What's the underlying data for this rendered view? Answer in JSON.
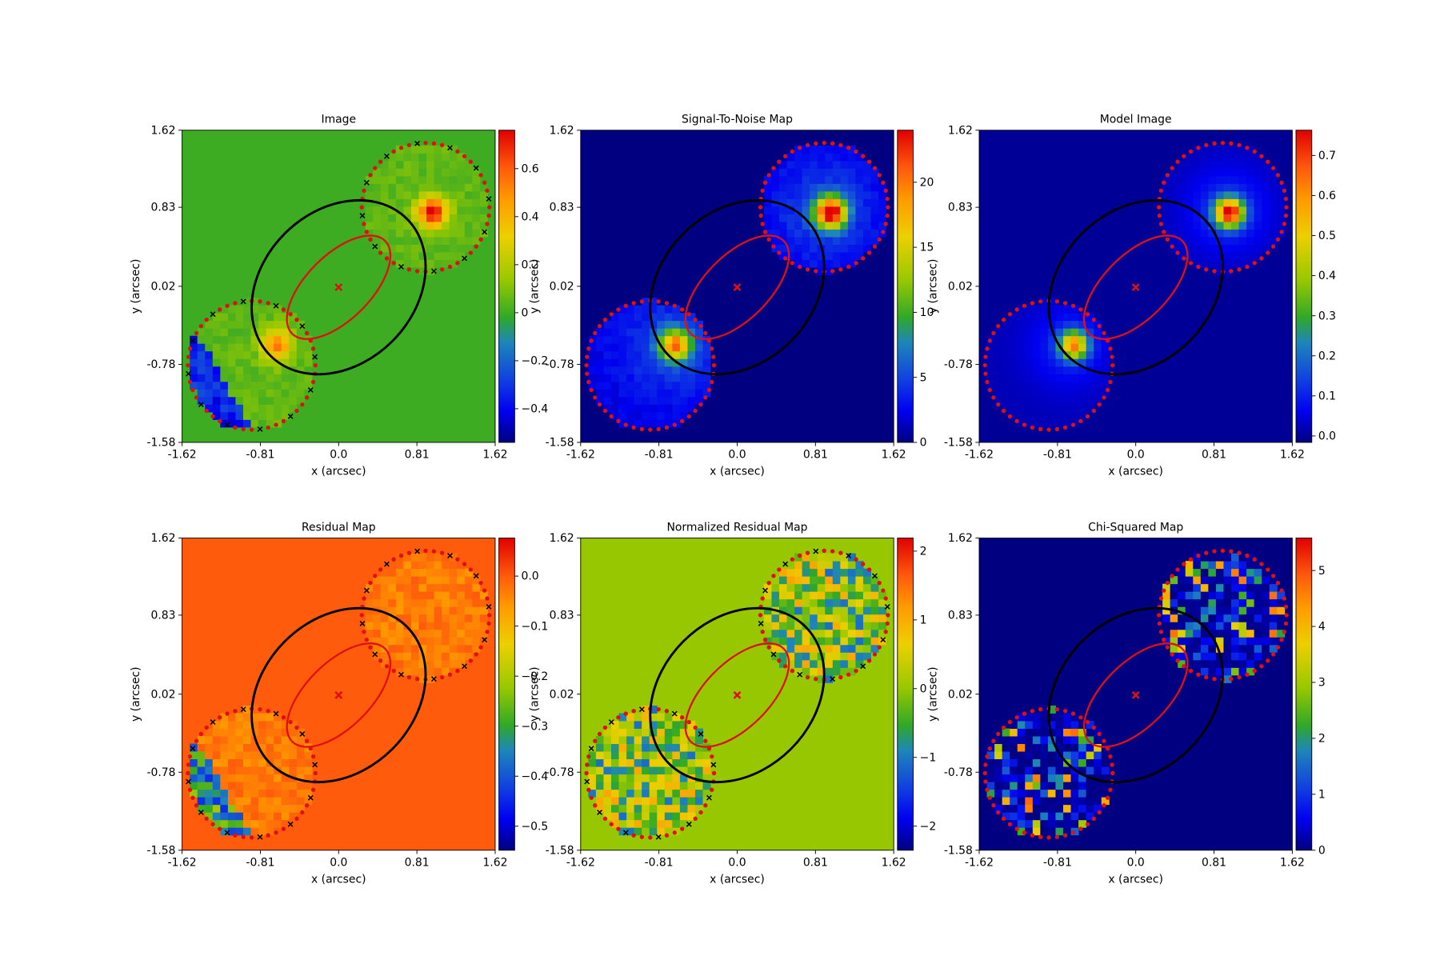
{
  "chart_data": [
    {
      "type": "image",
      "title": "Image",
      "xlabel": "x (arcsec)",
      "ylabel": "y (arcsec)",
      "xlim": [
        -1.62,
        1.62
      ],
      "ylim": [
        -1.58,
        1.62
      ],
      "xticks": [
        -1.62,
        -0.81,
        {
          "value": 0,
          "label": "0.0"
        },
        0.81,
        1.62
      ],
      "yticks": [
        -1.58,
        -0.78,
        0.02,
        0.83,
        1.62
      ],
      "colormap": "jet",
      "clim": [
        -0.54,
        0.76
      ],
      "cticks": [
        {
          "value": -0.4,
          "label": "−0.4"
        },
        {
          "value": -0.2,
          "label": "−0.2"
        },
        0,
        0.2,
        0.4,
        0.6
      ]
    },
    {
      "type": "image",
      "title": "Signal-To-Noise Map",
      "xlabel": "x (arcsec)",
      "ylabel": "y (arcsec)",
      "xlim": [
        -1.62,
        1.62
      ],
      "ylim": [
        -1.58,
        1.62
      ],
      "xticks": [
        -1.62,
        -0.81,
        {
          "value": 0,
          "label": "0.0"
        },
        0.81,
        1.62
      ],
      "yticks": [
        -1.58,
        -0.78,
        0.02,
        0.83,
        1.62
      ],
      "colormap": "jet",
      "clim": [
        0,
        24
      ],
      "cticks": [
        0,
        5,
        10,
        15,
        20
      ]
    },
    {
      "type": "image",
      "title": "Model Image",
      "xlabel": "x (arcsec)",
      "ylabel": "y (arcsec)",
      "xlim": [
        -1.62,
        1.62
      ],
      "ylim": [
        -1.58,
        1.62
      ],
      "xticks": [
        -1.62,
        -0.81,
        {
          "value": 0,
          "label": "0.0"
        },
        0.81,
        1.62
      ],
      "yticks": [
        -1.58,
        -0.78,
        0.02,
        0.83,
        1.62
      ],
      "colormap": "jet",
      "clim": [
        -0.016,
        0.763
      ],
      "cticks": [
        {
          "value": 0,
          "label": "0.0"
        },
        0.1,
        0.2,
        0.3,
        0.4,
        0.5,
        0.6,
        0.7
      ]
    },
    {
      "type": "image",
      "title": "Residual Map",
      "xlabel": "x (arcsec)",
      "ylabel": "y (arcsec)",
      "xlim": [
        -1.62,
        1.62
      ],
      "ylim": [
        -1.58,
        1.62
      ],
      "xticks": [
        -1.62,
        -0.81,
        {
          "value": 0,
          "label": "0.0"
        },
        0.81,
        1.62
      ],
      "yticks": [
        -1.58,
        -0.78,
        0.02,
        0.83,
        1.62
      ],
      "colormap": "jet",
      "clim": [
        -0.548,
        0.076
      ],
      "cticks": [
        {
          "value": -0.5,
          "label": "−0.5"
        },
        {
          "value": -0.4,
          "label": "−0.4"
        },
        {
          "value": -0.3,
          "label": "−0.3"
        },
        {
          "value": -0.2,
          "label": "−0.2"
        },
        {
          "value": -0.1,
          "label": "−0.1"
        },
        {
          "value": 0,
          "label": "0.0"
        }
      ]
    },
    {
      "type": "image",
      "title": "Normalized Residual Map",
      "xlabel": "x (arcsec)",
      "ylabel": "y (arcsec)",
      "xlim": [
        -1.62,
        1.62
      ],
      "ylim": [
        -1.58,
        1.62
      ],
      "xticks": [
        -1.62,
        -0.81,
        {
          "value": 0,
          "label": "0.0"
        },
        0.81,
        1.62
      ],
      "yticks": [
        -1.58,
        -0.78,
        0.02,
        0.83,
        1.62
      ],
      "colormap": "jet",
      "clim": [
        -2.35,
        2.19
      ],
      "cticks": [
        {
          "value": -2,
          "label": "−2"
        },
        {
          "value": -1,
          "label": "−1"
        },
        0,
        1,
        2
      ]
    },
    {
      "type": "image",
      "title": "Chi-Squared Map",
      "xlabel": "x (arcsec)",
      "ylabel": "y (arcsec)",
      "xlim": [
        -1.62,
        1.62
      ],
      "ylim": [
        -1.58,
        1.62
      ],
      "xticks": [
        -1.62,
        -0.81,
        {
          "value": 0,
          "label": "0.0"
        },
        0.81,
        1.62
      ],
      "yticks": [
        -1.58,
        -0.78,
        0.02,
        0.83,
        1.62
      ],
      "colormap": "jet",
      "clim": [
        0,
        5.58
      ],
      "cticks": [
        0,
        1,
        2,
        3,
        4,
        5
      ]
    }
  ]
}
